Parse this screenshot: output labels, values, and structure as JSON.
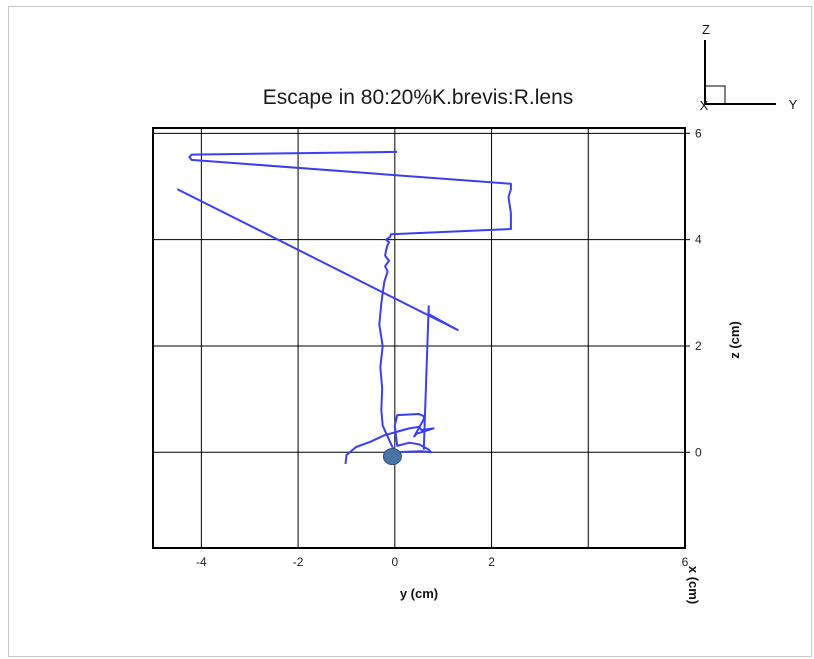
{
  "chart_data": {
    "type": "line",
    "title": "Escape in 80:20%K.brevis:R.lens",
    "xlabel": "y (cm)",
    "ylabel": "z (cm)",
    "third_axis_label": "x (cm)",
    "xlim": [
      -5,
      6
    ],
    "ylim": [
      -1.8,
      6.1
    ],
    "x_ticks": [
      -4,
      -2,
      0,
      2,
      4,
      6
    ],
    "x_tick_labels": [
      "-4",
      "-2",
      "0",
      "2",
      "",
      "6"
    ],
    "y_ticks": [
      0,
      2,
      4,
      6
    ],
    "y_tick_labels": [
      "0",
      "2",
      "4",
      "6"
    ],
    "grid": true,
    "line_color": "#3a3ff0",
    "marker_color": "#4a74a8",
    "series": [
      {
        "x": [
          -1.02,
          -1.0,
          -0.8,
          -0.5,
          -0.22,
          0.1,
          0.3,
          0.5,
          0.55,
          0.8,
          0.45,
          0.4,
          0.6,
          0.6,
          0.5,
          0.05,
          0.0,
          0.05,
          0.3,
          0.5,
          0.7,
          0.75,
          0.55,
          0.0,
          -0.25,
          -0.28,
          -0.26,
          -0.3,
          -0.25,
          -0.32,
          -0.28,
          -0.22,
          -0.15,
          -0.2,
          -0.12,
          -0.2,
          -0.18,
          -0.15,
          -0.12,
          -0.18,
          -0.1,
          -0.08,
          2.4,
          2.4,
          2.35,
          2.4,
          2.4,
          -4.2,
          -4.25,
          -4.2,
          0.05
        ],
        "y": [
          -0.22,
          -0.05,
          0.1,
          0.2,
          0.32,
          0.4,
          0.45,
          0.48,
          0.42,
          0.45,
          0.35,
          0.3,
          0.62,
          0.68,
          0.72,
          0.7,
          0.5,
          0.12,
          0.18,
          0.15,
          0.05,
          0.0,
          0.02,
          0.0,
          0.5,
          0.8,
          1.2,
          1.6,
          2.0,
          2.4,
          2.8,
          3.2,
          3.4,
          3.5,
          3.6,
          3.7,
          3.8,
          3.9,
          3.95,
          4.0,
          4.05,
          4.1,
          4.2,
          4.5,
          4.8,
          4.95,
          5.05,
          5.5,
          5.55,
          5.6,
          5.65
        ]
      },
      {
        "x": [
          -4.5,
          1.3,
          0.9,
          0.7,
          0.7,
          0.6
        ],
        "y": [
          4.95,
          2.3,
          2.5,
          2.6,
          2.75,
          0.05
        ]
      }
    ],
    "start_marker": {
      "x": -0.05,
      "y": -0.08
    }
  },
  "triad": {
    "z": "Z",
    "x": "X",
    "y": "Y"
  }
}
